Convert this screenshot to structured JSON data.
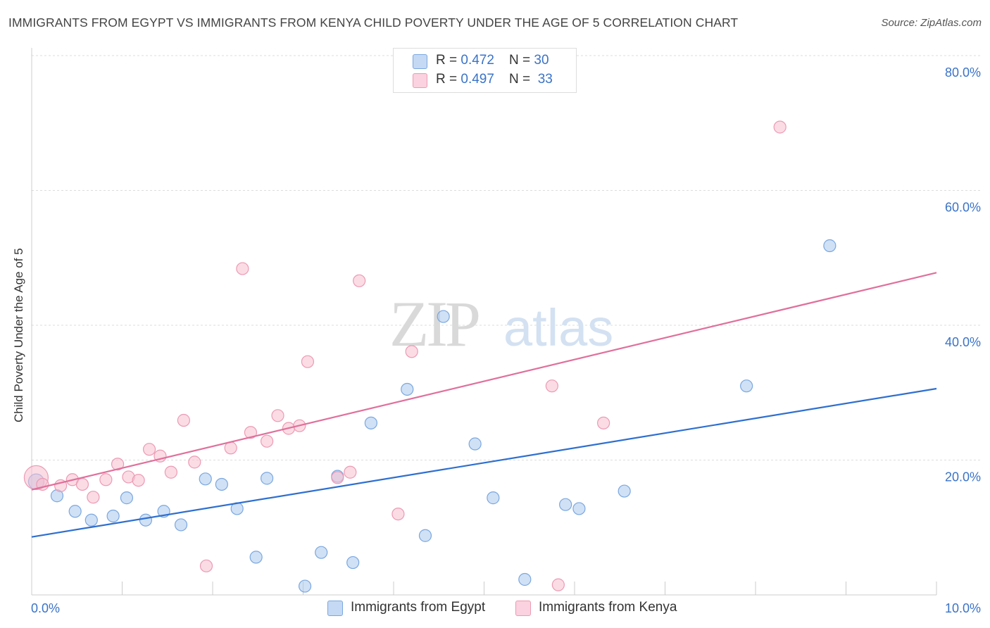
{
  "chart_data": {
    "type": "scatter",
    "title": "IMMIGRANTS FROM EGYPT VS IMMIGRANTS FROM KENYA CHILD POVERTY UNDER THE AGE OF 5 CORRELATION CHART",
    "source": "Source: ZipAtlas.com",
    "xlabel": "",
    "ylabel": "Child Poverty Under the Age of 5",
    "xlim": [
      0,
      10
    ],
    "ylim": [
      0,
      80
    ],
    "x_tick_labels": [
      "0.0%",
      "10.0%"
    ],
    "y_ticks": [
      {
        "value": 20,
        "label": "20.0%"
      },
      {
        "value": 40,
        "label": "40.0%"
      },
      {
        "value": 60,
        "label": "60.0%"
      },
      {
        "value": 80,
        "label": "80.0%"
      }
    ],
    "watermark": "ZIPatlas",
    "series": [
      {
        "name": "Immigrants from Egypt",
        "color": "#a9c8ef",
        "stroke": "#7aa7df",
        "line_color": "#2e6fcf",
        "R": "0.472",
        "N": "30",
        "trend": {
          "x0": 0,
          "y0": 8.6,
          "x1": 10,
          "y1": 30.6
        },
        "points": [
          [
            0.05,
            16.8,
            2
          ],
          [
            0.28,
            14.7,
            1
          ],
          [
            0.48,
            12.4,
            1
          ],
          [
            0.66,
            11.1,
            1
          ],
          [
            0.9,
            11.7,
            1
          ],
          [
            1.05,
            14.4,
            1
          ],
          [
            1.26,
            11.1,
            1
          ],
          [
            1.46,
            12.4,
            1
          ],
          [
            1.65,
            10.4,
            1
          ],
          [
            1.92,
            17.2,
            1
          ],
          [
            2.1,
            16.4,
            1
          ],
          [
            2.27,
            12.8,
            1
          ],
          [
            2.48,
            5.6,
            1
          ],
          [
            2.6,
            17.3,
            1
          ],
          [
            3.02,
            1.3,
            1
          ],
          [
            3.2,
            6.3,
            1
          ],
          [
            3.38,
            17.6,
            1
          ],
          [
            3.55,
            4.8,
            1
          ],
          [
            3.75,
            25.5,
            1
          ],
          [
            4.15,
            30.5,
            1
          ],
          [
            4.35,
            8.8,
            1
          ],
          [
            4.55,
            41.3,
            1
          ],
          [
            4.9,
            22.4,
            1
          ],
          [
            5.1,
            14.4,
            1
          ],
          [
            5.45,
            2.3,
            1
          ],
          [
            5.9,
            13.4,
            1
          ],
          [
            6.05,
            12.8,
            1
          ],
          [
            6.55,
            15.4,
            1
          ],
          [
            7.9,
            31.0,
            1
          ],
          [
            8.82,
            51.8,
            1
          ]
        ]
      },
      {
        "name": "Immigrants from Kenya",
        "color": "#f8bfd0",
        "stroke": "#ec9ab4",
        "line_color": "#e0709a",
        "R": "0.497",
        "N": "33",
        "trend": {
          "x0": 0,
          "y0": 15.6,
          "x1": 10,
          "y1": 47.8
        },
        "points": [
          [
            0.05,
            17.4,
            3
          ],
          [
            0.12,
            16.4,
            1
          ],
          [
            0.32,
            16.2,
            1
          ],
          [
            0.45,
            17.1,
            1
          ],
          [
            0.56,
            16.4,
            1
          ],
          [
            0.68,
            14.5,
            1
          ],
          [
            0.82,
            17.1,
            1
          ],
          [
            0.95,
            19.4,
            1
          ],
          [
            1.07,
            17.5,
            1
          ],
          [
            1.18,
            17.0,
            1
          ],
          [
            1.3,
            21.6,
            1
          ],
          [
            1.42,
            20.6,
            1
          ],
          [
            1.54,
            18.2,
            1
          ],
          [
            1.68,
            25.9,
            1
          ],
          [
            1.8,
            19.7,
            1
          ],
          [
            1.93,
            4.3,
            1
          ],
          [
            2.2,
            21.8,
            1
          ],
          [
            2.33,
            48.4,
            1
          ],
          [
            2.42,
            24.1,
            1
          ],
          [
            2.6,
            22.8,
            1
          ],
          [
            2.72,
            26.6,
            1
          ],
          [
            2.84,
            24.7,
            1
          ],
          [
            2.96,
            25.1,
            1
          ],
          [
            3.05,
            34.6,
            1
          ],
          [
            3.38,
            17.4,
            1
          ],
          [
            3.52,
            18.2,
            1
          ],
          [
            3.62,
            46.6,
            1
          ],
          [
            4.05,
            12.0,
            1
          ],
          [
            4.2,
            36.1,
            1
          ],
          [
            5.75,
            31.0,
            1
          ],
          [
            5.82,
            1.5,
            1
          ],
          [
            6.32,
            25.5,
            1
          ],
          [
            8.27,
            69.4,
            1
          ]
        ]
      }
    ]
  }
}
